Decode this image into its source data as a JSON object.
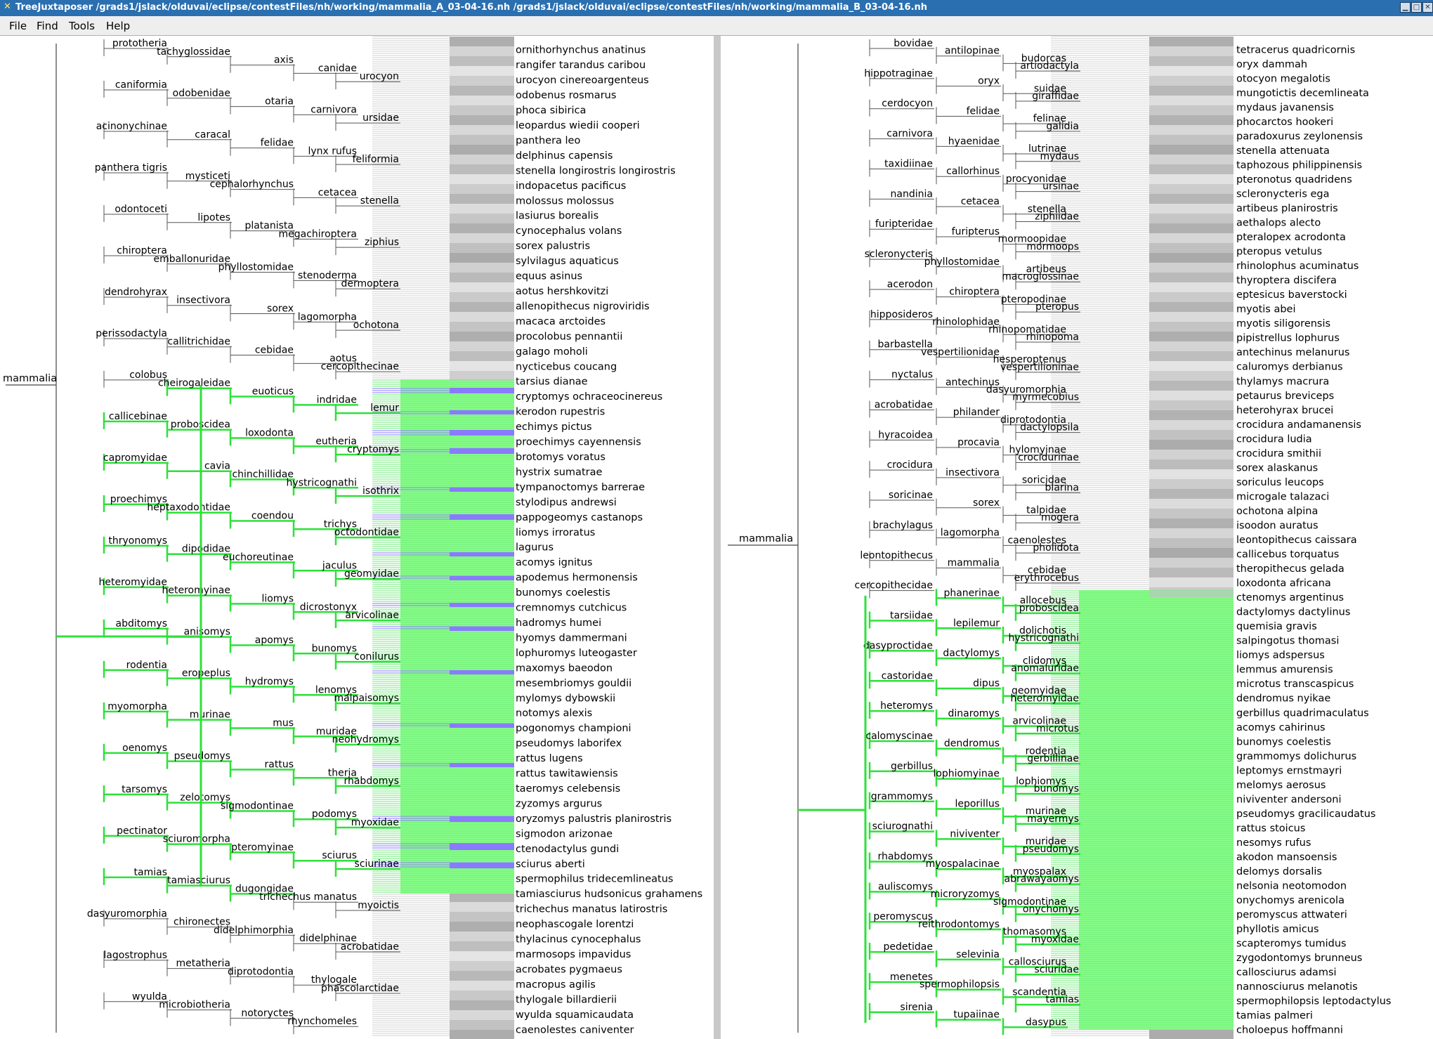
{
  "window": {
    "title": "TreeJuxtaposer /grads1/jslack/olduvai/eclipse/contestFiles/nh/working/mammalia_A_03-04-16.nh /grads1/jslack/olduvai/eclipse/contestFiles/nh/working/mammalia_B_03-04-16.nh",
    "icon": "tree-app-icon",
    "buttons": [
      "minimize",
      "maximize",
      "close"
    ]
  },
  "menu": [
    "File",
    "Find",
    "Tools",
    "Help"
  ],
  "colors": {
    "highlight_green": "#88ff88",
    "highlight_blue": "#8a7aff",
    "green_edge": "#2ee03a",
    "blue_edge": "#2a1ad4",
    "grey_band": "#b4b4b4",
    "titlebar": "#2a6fb0",
    "divider": "#c8c8c8"
  },
  "left_tree": {
    "root": "mammalia",
    "internal": [
      "prototheria",
      "tachyglossidae",
      "axis",
      "canidae",
      "urocyon",
      "caniformia",
      "odobenidae",
      "otaria",
      "carnivora",
      "ursidae",
      "acinonychinae",
      "caracal",
      "felidae",
      "lynx rufus",
      "feliformia",
      "panthera tigris",
      "mysticeti",
      "cephalorhynchus",
      "cetacea",
      "stenella",
      "odontoceti",
      "lipotes",
      "platanista",
      "megachiroptera",
      "ziphius",
      "chiroptera",
      "emballonuridae",
      "phyllostomidae",
      "stenoderma",
      "dermoptera",
      "dendrohyrax",
      "insectivora",
      "sorex",
      "lagomorpha",
      "ochotona",
      "perissodactyla",
      "callitrichidae",
      "cebidae",
      "aotus",
      "cercopithecinae",
      "colobus",
      "cheirogaleidae",
      "euoticus",
      "indridae",
      "lemur",
      "callicebinae",
      "proboscidea",
      "loxodonta",
      "eutheria",
      "cryptomys",
      "capromyidae",
      "cavia",
      "chinchillidae",
      "hystricognathi",
      "isothrix",
      "proechimys",
      "heptaxodontidae",
      "coendou",
      "trichys",
      "octodontidae",
      "thryonomys",
      "dipodidae",
      "euchoreutinae",
      "jaculus",
      "geomyidae",
      "heteromyidae",
      "heteromyinae",
      "liomys",
      "dicrostonyx",
      "arvicolinae",
      "abditomys",
      "anisomys",
      "apomys",
      "bunomys",
      "conilurus",
      "rodentia",
      "eropeplus",
      "hydromys",
      "lenomys",
      "malpaisomys",
      "myomorpha",
      "murinae",
      "mus",
      "muridae",
      "neohydromys",
      "oenomys",
      "pseudomys",
      "rattus",
      "theria",
      "rhabdomys",
      "tarsomys",
      "zelotomys",
      "sigmodontinae",
      "podomys",
      "myoxidae",
      "pectinator",
      "sciuromorpha",
      "pteromyinae",
      "sciurus",
      "sciurinae",
      "tamias",
      "tamiasciurus",
      "dugongidae",
      "trichechus manatus",
      "myoictis",
      "dasyuromorphia",
      "chironectes",
      "didelphimorphia",
      "didelphinae",
      "acrobatidae",
      "lagostrophus",
      "metatheria",
      "diprotodontia",
      "thylogale",
      "phascolarctidae",
      "wyulda",
      "microbiotheria",
      "notoryctes",
      "rhynchomeles"
    ],
    "leaves": [
      "ornithorhynchus anatinus",
      "rangifer tarandus caribou",
      "urocyon cinereoargenteus",
      "odobenus rosmarus",
      "phoca sibirica",
      "leopardus wiedii cooperi",
      "panthera leo",
      "delphinus capensis",
      "stenella longirostris longirostris",
      "indopacetus pacificus",
      "molossus molossus",
      "lasiurus borealis",
      "cynocephalus volans",
      "sorex palustris",
      "sylvilagus aquaticus",
      "equus asinus",
      "aotus hershkovitzi",
      "allenopithecus nigroviridis",
      "macaca arctoides",
      "procolobus pennantii",
      "galago moholi",
      "nycticebus coucang",
      "tarsius dianae",
      "cryptomys ochraceocinereus",
      "kerodon rupestris",
      "echimys pictus",
      "proechimys cayennensis",
      "brotomys voratus",
      "hystrix sumatrae",
      "tympanoctomys barrerae",
      "stylodipus andrewsi",
      "pappogeomys castanops",
      "liomys irroratus",
      "lagurus",
      "acomys ignitus",
      "apodemus hermonensis",
      "bunomys coelestis",
      "cremnomys cutchicus",
      "hadromys humei",
      "hyomys dammermani",
      "lophuromys luteogaster",
      "maxomys baeodon",
      "mesembriomys gouldii",
      "mylomys dybowskii",
      "notomys alexis",
      "pogonomys championi",
      "pseudomys laborifex",
      "rattus lugens",
      "rattus tawitawiensis",
      "taeromys celebensis",
      "zyzomys argurus",
      "oryzomys palustris planirostris",
      "sigmodon arizonae",
      "ctenodactylus gundi",
      "sciurus aberti",
      "spermophilus tridecemlineatus",
      "tamiasciurus hudsonicus grahamens",
      "trichechus manatus latirostris",
      "neophascogale lorentzi",
      "thylacinus cynocephalus",
      "marmosops impavidus",
      "acrobates pygmaeus",
      "macropus agilis",
      "thylogale billardierii",
      "wyulda squamicaudata",
      "caenolestes caniventer"
    ]
  },
  "right_tree": {
    "root": "mammalia",
    "internal": [
      "bovidae",
      "antilopinae",
      "budorcas",
      "artiodactyla",
      "hippotraginae",
      "oryx",
      "suidae",
      "giraffidae",
      "cerdocyon",
      "felidae",
      "felinae",
      "galidia",
      "carnivora",
      "hyaenidae",
      "lutrinae",
      "mydaus",
      "taxidiinae",
      "callorhinus",
      "procyonidae",
      "ursinae",
      "nandinia",
      "cetacea",
      "stenella",
      "ziphiidae",
      "furipteridae",
      "furipterus",
      "mormoopidae",
      "mormoops",
      "scleronycteris",
      "phyllostomidae",
      "artibeus",
      "macroglossinae",
      "acerodon",
      "chiroptera",
      "pteropodinae",
      "pteropus",
      "hipposideros",
      "rhinolophidae",
      "rhinopomatidae",
      "rhinopoma",
      "barbastella",
      "vespertilionidae",
      "hesperoptenus",
      "vespertilioninae",
      "nyctalus",
      "antechinus",
      "dasyuromorphia",
      "myrmecobius",
      "acrobatidae",
      "philander",
      "diprotodontia",
      "dactylopsila",
      "hyracoidea",
      "procavia",
      "hylomyinae",
      "crocidurinae",
      "crocidura",
      "insectivora",
      "soricidae",
      "blarina",
      "soricinae",
      "sorex",
      "talpidae",
      "mogera",
      "brachylagus",
      "lagomorpha",
      "caenolestes",
      "pholidota",
      "leontopithecus",
      "mammalia",
      "cebidae",
      "erythrocebus",
      "cercopithecidae",
      "phanerinae",
      "allocebus",
      "proboscidea",
      "tarsiidae",
      "lepilemur",
      "dolichotis",
      "hystricognathi",
      "dasyproctidae",
      "dactylomys",
      "clidomys",
      "anomaluridae",
      "castoridae",
      "dipus",
      "geomyidae",
      "heteromyidae",
      "heteromys",
      "dinaromys",
      "arvicolinae",
      "microtus",
      "calomyscinae",
      "dendromus",
      "rodentia",
      "gerbillinae",
      "gerbillus",
      "lophiomyinae",
      "lophiomys",
      "bunomys",
      "grammomys",
      "leporillus",
      "murinae",
      "mayermys",
      "sciurognathi",
      "niviventer",
      "muridae",
      "pseudomys",
      "rhabdomys",
      "myospalacinae",
      "myospalax",
      "abrawayaomys",
      "auliscomys",
      "microryzomys",
      "sigmodontinae",
      "onychomys",
      "peromyscus",
      "reithrodontomys",
      "thomasomys",
      "myoxidae",
      "pedetidae",
      "selevinia",
      "callosciurus",
      "sciuridae",
      "menetes",
      "spermophilopsis",
      "scandentia",
      "tamias",
      "sirenia",
      "tupaiinae",
      "dasypus"
    ],
    "leaves": [
      "tetracerus quadricornis",
      "oryx dammah",
      "otocyon megalotis",
      "mungotictis decemlineata",
      "mydaus javanensis",
      "phocarctos hookeri",
      "paradoxurus zeylonensis",
      "stenella attenuata",
      "taphozous philippinensis",
      "pteronotus quadridens",
      "scleronycteris ega",
      "artibeus planirostris",
      "aethalops alecto",
      "pteralopex acrodonta",
      "pteropus vetulus",
      "rhinolophus acuminatus",
      "thyroptera discifera",
      "eptesicus baverstocki",
      "myotis abei",
      "myotis siligorensis",
      "pipistrellus lophurus",
      "antechinus melanurus",
      "caluromys derbianus",
      "thylamys macrura",
      "petaurus breviceps",
      "heterohyrax brucei",
      "crocidura andamanensis",
      "crocidura ludia",
      "crocidura smithii",
      "sorex alaskanus",
      "soriculus leucops",
      "microgale talazaci",
      "ochotona alpina",
      "isoodon auratus",
      "leontopithecus caissara",
      "callicebus torquatus",
      "theropithecus gelada",
      "loxodonta africana",
      "ctenomys argentinus",
      "dactylomys dactylinus",
      "quemisia gravis",
      "salpingotus thomasi",
      "liomys adspersus",
      "lemmus amurensis",
      "microtus transcaspicus",
      "dendromus nyikae",
      "gerbillus quadrimaculatus",
      "acomys cahirinus",
      "bunomys coelestis",
      "grammomys dolichurus",
      "leptomys ernstmayri",
      "melomys aerosus",
      "niviventer andersoni",
      "pseudomys gracilicaudatus",
      "rattus stoicus",
      "nesomys rufus",
      "akodon mansoensis",
      "delomys dorsalis",
      "nelsonia neotomodon",
      "onychomys arenicola",
      "peromyscus attwateri",
      "phyllotis amicus",
      "scapteromys tumidus",
      "zygodontomys brunneus",
      "callosciurus adamsi",
      "nannosciurus melanotis",
      "spermophilopsis leptodactylus",
      "tamias palmeri",
      "choloepus hoffmanni"
    ]
  }
}
